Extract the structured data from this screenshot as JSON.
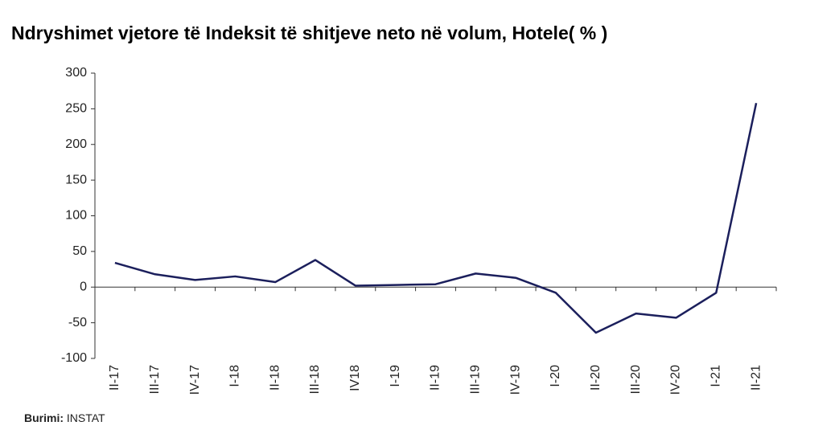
{
  "chart_data": {
    "type": "line",
    "title": "Ndryshimet vjetore të Indeksit të shitjeve neto në volum, Hotele( % )",
    "categories": [
      "II-17",
      "III-17",
      "IV-17",
      "I-18",
      "II-18",
      "III-18",
      "IV18",
      "I-19",
      "II-19",
      "III-19",
      "IV-19",
      "I-20",
      "II-20",
      "III-20",
      "IV-20",
      "I-21",
      "II-21"
    ],
    "values": [
      34,
      18,
      10,
      15,
      7,
      38,
      2,
      3,
      4,
      19,
      13,
      -8,
      -64,
      -37,
      -43,
      -8,
      258
    ],
    "color": "#1b1f5c",
    "ylim": [
      -100,
      300
    ],
    "yticks": [
      -100,
      -50,
      0,
      50,
      100,
      150,
      200,
      250,
      300
    ],
    "grid": false
  },
  "source": {
    "label": "Burimi:",
    "text": "INSTAT"
  }
}
